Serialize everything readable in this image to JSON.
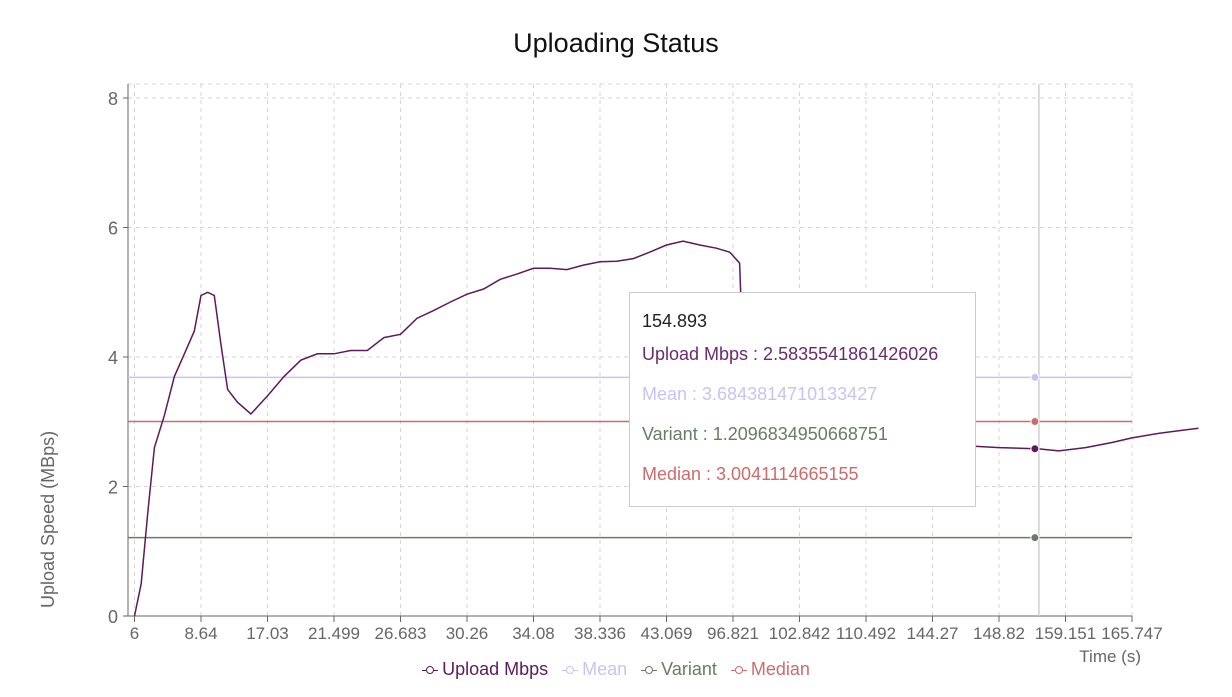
{
  "chart_data": {
    "type": "line",
    "title": "Uploading Status",
    "xlabel": "Time (s)",
    "ylabel": "Upload Speed (MBps)",
    "ylim": [
      0,
      8
    ],
    "yticks": [
      "0",
      "2",
      "4",
      "6",
      "8"
    ],
    "xtick_labels": [
      "6",
      "8.64",
      "17.03",
      "21.499",
      "26.683",
      "30.26",
      "34.08",
      "38.336",
      "43.069",
      "96.821",
      "102.842",
      "110.492",
      "144.27",
      "148.82",
      "159.151",
      "165.747"
    ],
    "grid": true,
    "legend_placement": "bottom",
    "series": [
      {
        "name": "Upload Mbps",
        "color": "#5c1a5c",
        "points": [
          [
            0,
            0.0
          ],
          [
            0.1,
            0.5
          ],
          [
            0.2,
            1.6
          ],
          [
            0.3,
            2.6
          ],
          [
            0.45,
            3.1
          ],
          [
            0.6,
            3.7
          ],
          [
            0.75,
            4.05
          ],
          [
            0.9,
            4.4
          ],
          [
            1.0,
            4.95
          ],
          [
            1.1,
            5.0
          ],
          [
            1.2,
            4.95
          ],
          [
            1.3,
            4.2
          ],
          [
            1.4,
            3.5
          ],
          [
            1.55,
            3.3
          ],
          [
            1.75,
            3.12
          ],
          [
            2.0,
            3.4
          ],
          [
            2.25,
            3.7
          ],
          [
            2.5,
            3.95
          ],
          [
            2.75,
            4.05
          ],
          [
            3.0,
            4.05
          ],
          [
            3.25,
            4.1
          ],
          [
            3.5,
            4.1
          ],
          [
            3.75,
            4.3
          ],
          [
            4.0,
            4.35
          ],
          [
            4.25,
            4.6
          ],
          [
            4.5,
            4.72
          ],
          [
            4.75,
            4.85
          ],
          [
            5.0,
            4.97
          ],
          [
            5.25,
            5.05
          ],
          [
            5.5,
            5.2
          ],
          [
            5.75,
            5.28
          ],
          [
            6.0,
            5.37
          ],
          [
            6.25,
            5.37
          ],
          [
            6.5,
            5.35
          ],
          [
            6.75,
            5.42
          ],
          [
            7.0,
            5.47
          ],
          [
            7.25,
            5.48
          ],
          [
            7.5,
            5.52
          ],
          [
            7.75,
            5.62
          ],
          [
            8.0,
            5.73
          ],
          [
            8.25,
            5.79
          ],
          [
            8.5,
            5.73
          ],
          [
            8.75,
            5.68
          ],
          [
            8.95,
            5.62
          ],
          [
            9.1,
            5.45
          ],
          [
            9.13,
            4.6
          ],
          [
            9.2,
            3.5
          ],
          [
            9.5,
            3.1
          ],
          [
            10.0,
            2.95
          ],
          [
            10.5,
            2.85
          ],
          [
            11.0,
            2.75
          ],
          [
            11.5,
            2.7
          ],
          [
            12.0,
            2.66
          ],
          [
            12.5,
            2.63
          ],
          [
            13.0,
            2.6
          ],
          [
            13.6,
            2.58
          ],
          [
            13.9,
            2.55
          ],
          [
            14.3,
            2.6
          ],
          [
            14.7,
            2.68
          ],
          [
            15.0,
            2.75
          ],
          [
            15.4,
            2.82
          ],
          [
            15.7,
            2.86
          ],
          [
            16.0,
            2.9
          ]
        ]
      },
      {
        "name": "Mean",
        "color": "#c8c3f5",
        "value": 3.6843814710133427
      },
      {
        "name": "Variant",
        "color": "#6b7a69",
        "value": 1.2096834950668751
      },
      {
        "name": "Median",
        "color": "#cd6b6b",
        "value": 3.0041114665155
      }
    ],
    "tooltip": {
      "x": "154.893",
      "x_index": 13.6,
      "rows": [
        {
          "label": "Upload Mbps",
          "value": "2.5835541861426026",
          "text": "Upload Mbps : 2.5835541861426026",
          "color": "#6b2a6b"
        },
        {
          "label": "Mean",
          "value": "3.6843814710133427",
          "text": "Mean : 3.6843814710133427",
          "color": "#c8c3f5"
        },
        {
          "label": "Variant",
          "value": "1.2096834950668751",
          "text": "Variant : 1.2096834950668751",
          "color": "#6b7a69"
        },
        {
          "label": "Median",
          "value": "3.0041114665155",
          "text": "Median : 3.0041114665155",
          "color": "#cd6b6b"
        }
      ]
    }
  }
}
